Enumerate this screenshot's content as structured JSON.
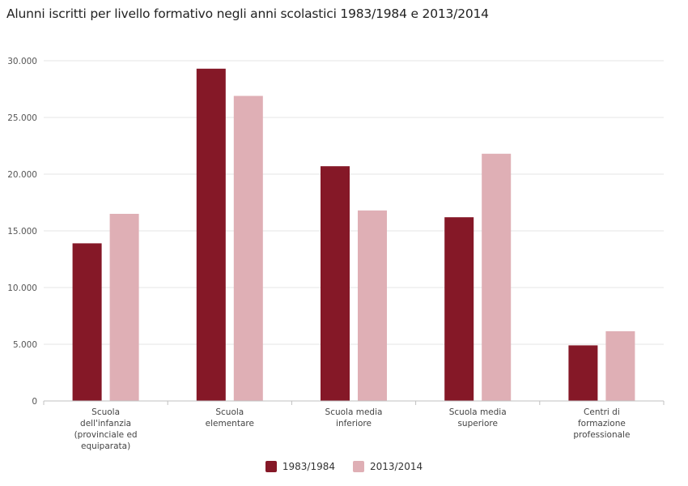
{
  "chart_data": {
    "type": "bar",
    "title": "Alunni iscritti per livello formativo negli anni scolastici 1983/1984 e 2013/2014",
    "categories": [
      [
        "Scuola",
        "dell'infanzia",
        "(provinciale ed",
        "equiparata)"
      ],
      [
        "Scuola",
        "elementare"
      ],
      [
        "Scuola media",
        "inferiore"
      ],
      [
        "Scuola media",
        "superiore"
      ],
      [
        "Centri di",
        "formazione",
        "professionale"
      ]
    ],
    "series": [
      {
        "name": "1983/1984",
        "color": "#851827",
        "values": [
          13900,
          29300,
          20700,
          16200,
          4900
        ]
      },
      {
        "name": "2013/2014",
        "color": "#dfafb5",
        "values": [
          16500,
          26900,
          16800,
          21800,
          6150
        ]
      }
    ],
    "ylim": [
      0,
      30000
    ],
    "yticks": [
      0,
      5000,
      10000,
      15000,
      20000,
      25000,
      30000
    ],
    "ytick_labels": [
      "0",
      "5.000",
      "10.000",
      "15.000",
      "20.000",
      "25.000",
      "30.000"
    ],
    "xlabel": "",
    "ylabel": "",
    "grid": true,
    "legend_position": "bottom-center"
  }
}
